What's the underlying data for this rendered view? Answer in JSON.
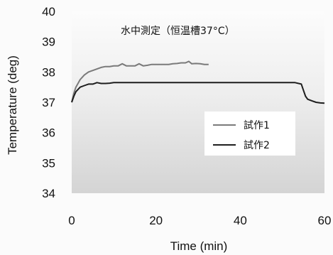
{
  "chart_data": {
    "type": "line",
    "title": "水中測定（恒温槽37°C）",
    "xlabel": "Time (min)",
    "ylabel": "Temperature (deg)",
    "xlim": [
      0,
      60
    ],
    "ylim": [
      34,
      40
    ],
    "x_ticks": [
      "0",
      "20",
      "40",
      "60"
    ],
    "y_ticks": [
      "40",
      "39",
      "38",
      "37",
      "36",
      "35",
      "34"
    ],
    "legend_position": "right-middle",
    "grid": false,
    "series": [
      {
        "name": "試作1",
        "color": "#7a7a7a",
        "points": [
          [
            0,
            37.0
          ],
          [
            0.5,
            37.3
          ],
          [
            1,
            37.5
          ],
          [
            2,
            37.75
          ],
          [
            3,
            37.9
          ],
          [
            4,
            38.0
          ],
          [
            5,
            38.05
          ],
          [
            6,
            38.1
          ],
          [
            7,
            38.15
          ],
          [
            8,
            38.18
          ],
          [
            9,
            38.18
          ],
          [
            10,
            38.2
          ],
          [
            11,
            38.2
          ],
          [
            12,
            38.27
          ],
          [
            13,
            38.2
          ],
          [
            14,
            38.2
          ],
          [
            15,
            38.2
          ],
          [
            16,
            38.27
          ],
          [
            17,
            38.2
          ],
          [
            18,
            38.22
          ],
          [
            19,
            38.25
          ],
          [
            20,
            38.25
          ],
          [
            21,
            38.25
          ],
          [
            22,
            38.25
          ],
          [
            23,
            38.25
          ],
          [
            24,
            38.27
          ],
          [
            25,
            38.28
          ],
          [
            26,
            38.3
          ],
          [
            27,
            38.3
          ],
          [
            27.8,
            38.35
          ],
          [
            28.5,
            38.27
          ],
          [
            29.5,
            38.28
          ],
          [
            30.5,
            38.27
          ],
          [
            31.5,
            38.25
          ],
          [
            32.5,
            38.25
          ]
        ]
      },
      {
        "name": "試作2",
        "color": "#1e1e1e",
        "points": [
          [
            0,
            37.0
          ],
          [
            0.5,
            37.2
          ],
          [
            1,
            37.35
          ],
          [
            2,
            37.5
          ],
          [
            3,
            37.55
          ],
          [
            4,
            37.6
          ],
          [
            5,
            37.6
          ],
          [
            6,
            37.65
          ],
          [
            7,
            37.62
          ],
          [
            8,
            37.62
          ],
          [
            9,
            37.63
          ],
          [
            10,
            37.65
          ],
          [
            12,
            37.65
          ],
          [
            15,
            37.65
          ],
          [
            20,
            37.65
          ],
          [
            25,
            37.65
          ],
          [
            30,
            37.65
          ],
          [
            35,
            37.65
          ],
          [
            40,
            37.65
          ],
          [
            45,
            37.65
          ],
          [
            50,
            37.65
          ],
          [
            53,
            37.65
          ],
          [
            54.5,
            37.6
          ],
          [
            55,
            37.4
          ],
          [
            55.5,
            37.2
          ],
          [
            56,
            37.1
          ],
          [
            57,
            37.05
          ],
          [
            58,
            37.0
          ],
          [
            59,
            36.98
          ],
          [
            60,
            36.97
          ]
        ]
      }
    ]
  }
}
